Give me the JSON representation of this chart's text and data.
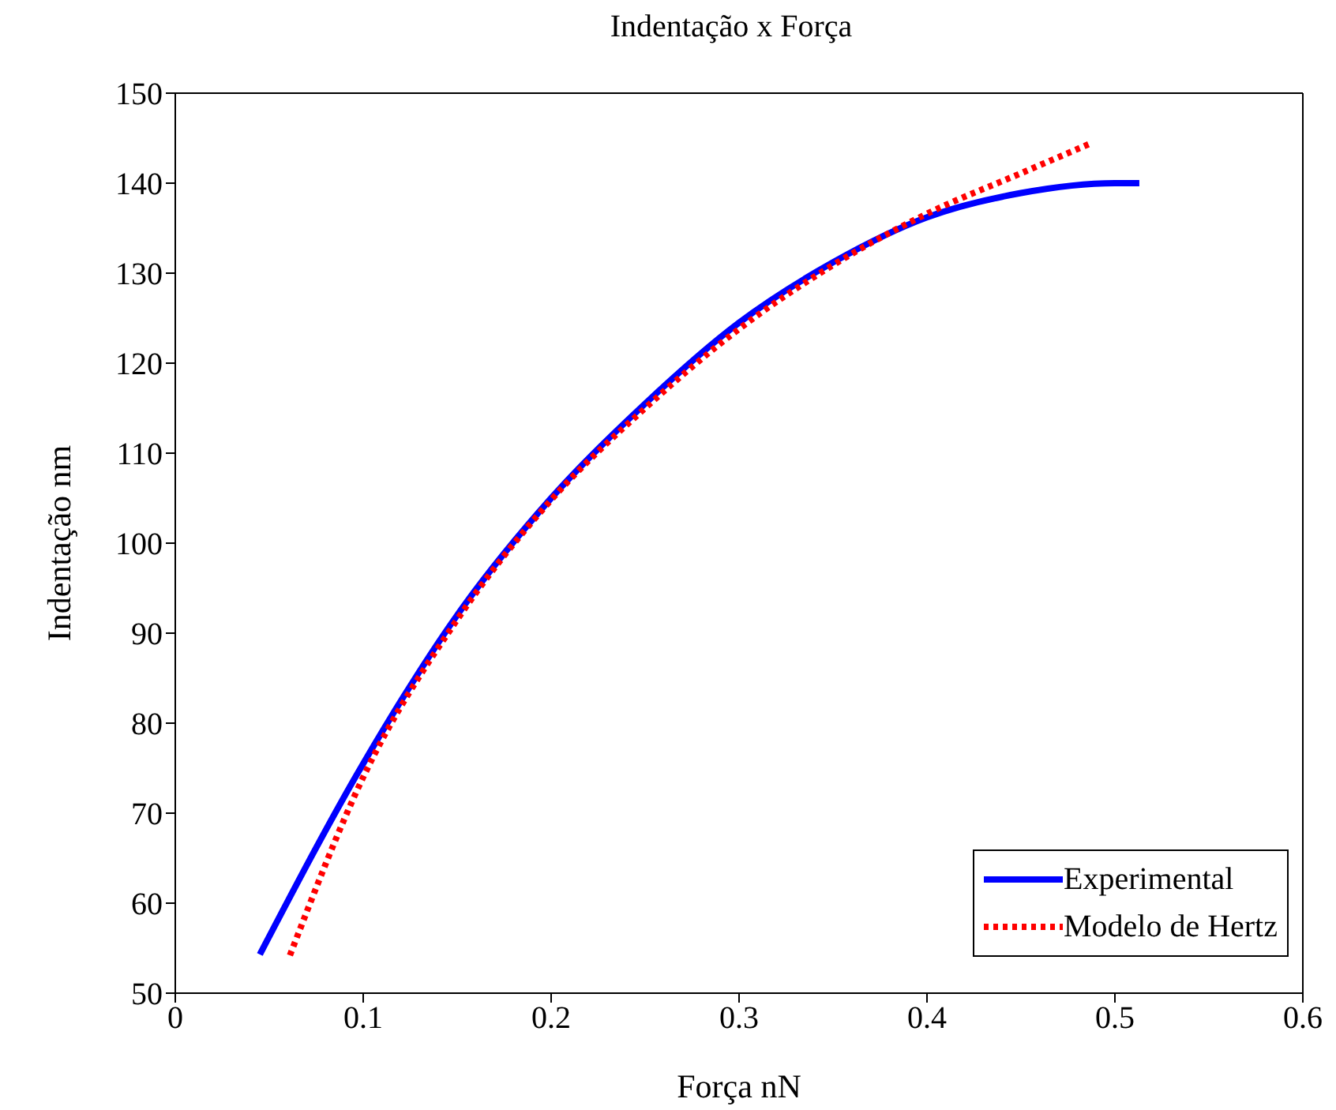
{
  "chart_data": {
    "type": "line",
    "title": "Indentação x Força",
    "xlabel": "Força nN",
    "ylabel": "Indentação nm",
    "xlim": [
      0,
      0.6
    ],
    "xticks": [
      0,
      0.1,
      0.2,
      0.3,
      0.4,
      0.5,
      0.6
    ],
    "ylim": [
      50,
      150
    ],
    "yticks": [
      50,
      60,
      70,
      80,
      90,
      100,
      110,
      120,
      130,
      140,
      150
    ],
    "grid": false,
    "legend": "bottom right",
    "marker": "none",
    "series": [
      {
        "name": "Experimental",
        "color": "#0000ff",
        "line_style": "solid",
        "x": [
          0.045,
          0.1,
          0.15,
          0.2,
          0.25,
          0.3,
          0.35,
          0.4,
          0.45,
          0.5,
          0.513
        ],
        "values": [
          54.3,
          75.5,
          92,
          105,
          115.5,
          124.5,
          131.2,
          136.2,
          138.9,
          140,
          140
        ]
      },
      {
        "name": "Modelo de Hertz",
        "color": "#ff0000",
        "line_style": "dotted",
        "x": [
          0.061,
          0.1,
          0.15,
          0.2,
          0.25,
          0.3,
          0.35,
          0.4,
          0.45,
          0.488
        ],
        "values": [
          54.2,
          74,
          91.5,
          104.8,
          115,
          123.8,
          130.9,
          136.6,
          141.1,
          144.5
        ]
      }
    ]
  }
}
